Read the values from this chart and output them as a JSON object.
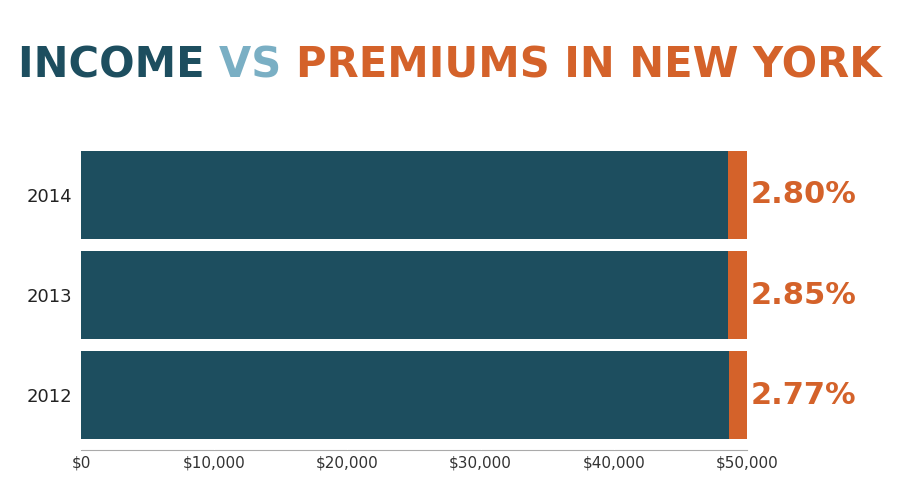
{
  "title_parts": [
    {
      "text": "INCOME ",
      "color": "#1d4e5f"
    },
    {
      "text": "VS ",
      "color": "#7aafc4"
    },
    {
      "text": "PREMIUMS IN NEW YORK",
      "color": "#d4622a"
    }
  ],
  "years": [
    "2014",
    "2013",
    "2012"
  ],
  "premium_pcts": [
    2.8,
    2.85,
    2.77
  ],
  "total_value": 50000,
  "income_color": "#1d4e5f",
  "premium_color": "#d4622a",
  "bar_height": 0.88,
  "xlim": [
    0,
    50000
  ],
  "xticks": [
    0,
    10000,
    20000,
    30000,
    40000,
    50000
  ],
  "xtick_labels": [
    "$0",
    "$10,000",
    "$20,000",
    "$30,000",
    "$40,000",
    "$50,000"
  ],
  "bg_color": "#ffffff",
  "pct_label_color": "#d4622a",
  "year_label_color": "#222222",
  "title_fontsize": 30,
  "pct_fontsize": 22,
  "year_fontsize": 13,
  "tick_fontsize": 11
}
